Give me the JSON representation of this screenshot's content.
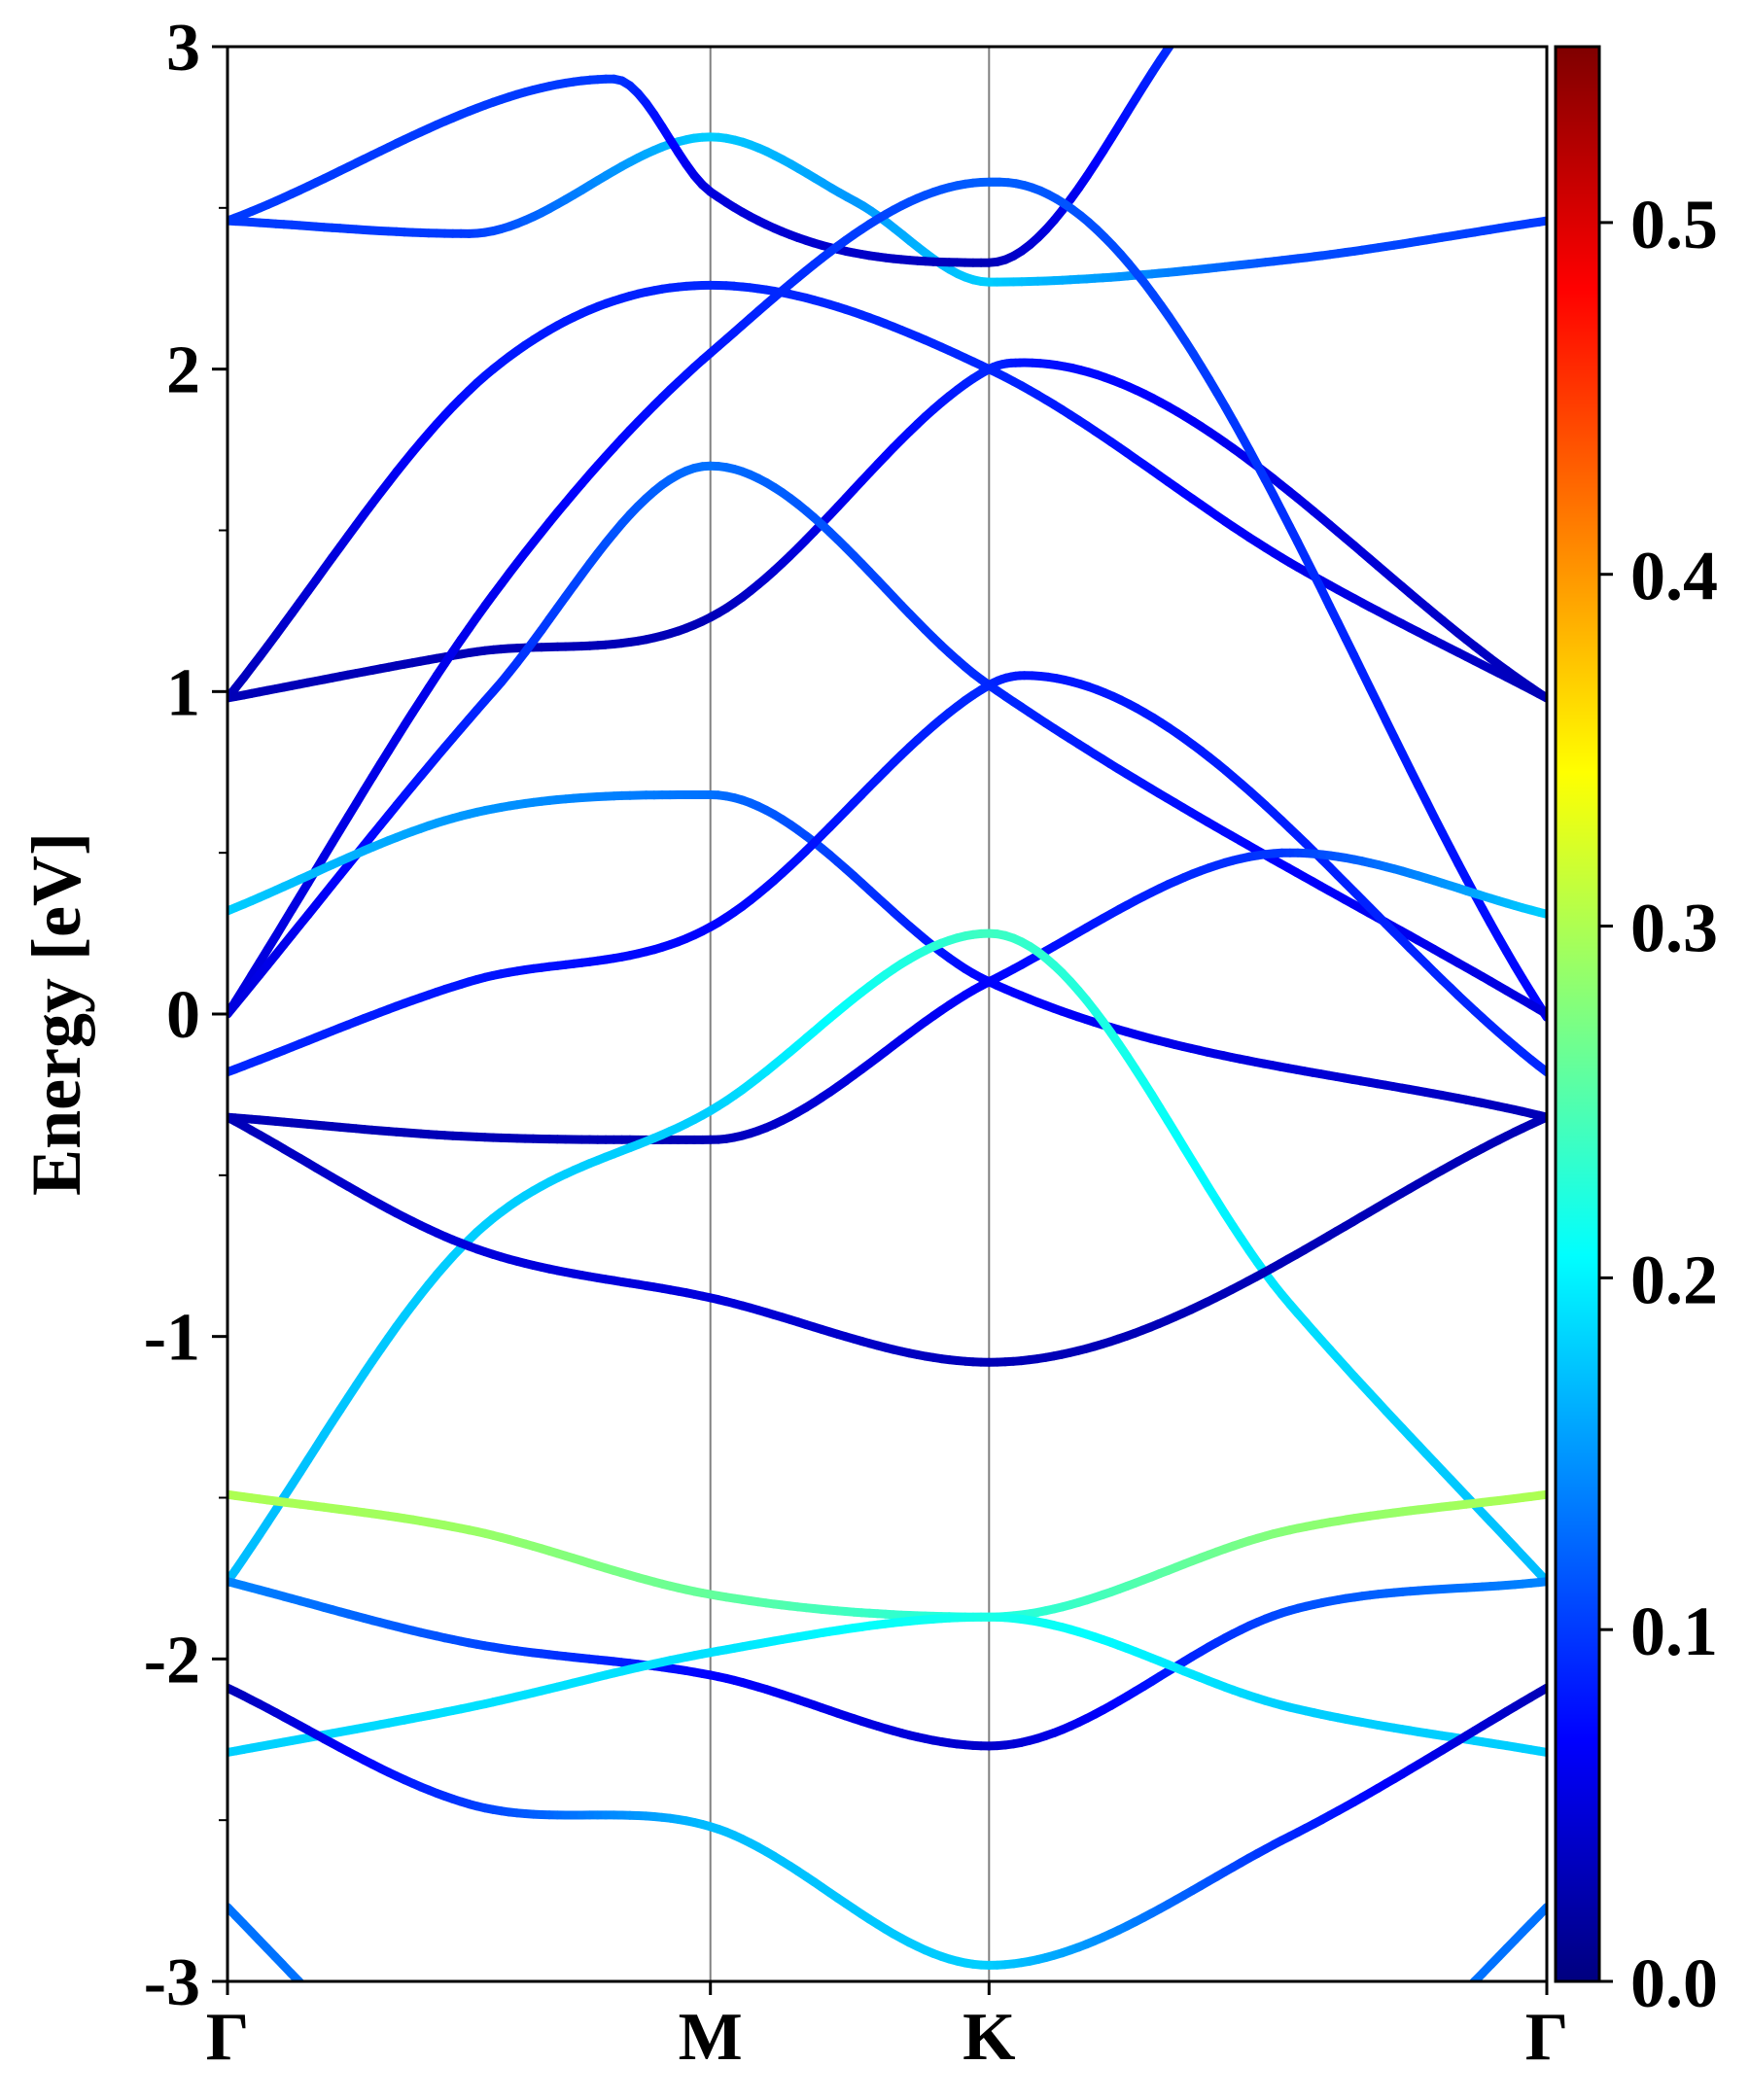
{
  "chart_data": {
    "type": "line",
    "title": "",
    "xlabel": "",
    "ylabel": "Energy [eV]",
    "ylim": [
      -3,
      3
    ],
    "y_ticks": [
      "-3",
      "-2",
      "-1",
      "0",
      "1",
      "2",
      "3"
    ],
    "y_ticks_values": [
      -3,
      -2,
      -1,
      0,
      1,
      2,
      3
    ],
    "y_minor_ticks": [
      -2.5,
      -1.5,
      -0.5,
      0.5,
      1.5,
      2.5
    ],
    "k_points": [
      {
        "label": "Γ",
        "k": 0.0
      },
      {
        "label": "M",
        "k": 1.0
      },
      {
        "label": "K",
        "k": 1.577
      },
      {
        "label": "Γ",
        "k": 2.732
      }
    ],
    "colorbar": {
      "colormap": "jet",
      "range": [
        0.0,
        0.55
      ],
      "tick_labels": [
        "0.0",
        "0.1",
        "0.2",
        "0.3",
        "0.4",
        "0.5"
      ],
      "tick_values": [
        0.0,
        0.1,
        0.2,
        0.3,
        0.4,
        0.5
      ]
    },
    "grid": false,
    "legend": "none",
    "series": [
      {
        "points": [
          [
            0,
            2.46,
            0.1
          ],
          [
            0.5,
            2.42,
            0.1
          ],
          [
            1.0,
            2.72,
            0.18
          ],
          [
            1.3,
            2.52,
            0.15
          ],
          [
            1.577,
            2.27,
            0.18
          ],
          [
            2.2,
            2.34,
            0.11
          ],
          [
            2.732,
            2.46,
            0.1
          ]
        ]
      },
      {
        "points": [
          [
            0,
            2.46,
            0.1
          ],
          [
            0.8,
            2.9,
            0.1
          ],
          [
            1.0,
            2.55,
            0.05
          ],
          [
            1.577,
            2.33,
            0.03
          ],
          [
            2.0,
            3.1,
            0.1
          ]
        ]
      },
      {
        "points": [
          [
            0,
            0.98,
            0.03
          ],
          [
            0.55,
            2.0,
            0.08
          ],
          [
            1.0,
            2.26,
            0.09
          ],
          [
            1.577,
            2.0,
            0.09
          ],
          [
            2.2,
            1.4,
            0.06
          ],
          [
            2.732,
            0.98,
            0.03
          ]
        ]
      },
      {
        "points": [
          [
            0,
            0.98,
            0.03
          ],
          [
            0.5,
            1.12,
            0.03
          ],
          [
            1.0,
            1.23,
            0.03
          ],
          [
            1.577,
            2.0,
            0.09
          ],
          [
            1.65,
            2.02,
            0.08
          ],
          [
            2.732,
            0.98,
            0.03
          ]
        ]
      },
      {
        "points": [
          [
            0,
            0.0,
            0.05
          ],
          [
            0.55,
            1.3,
            0.06
          ],
          [
            1.0,
            2.05,
            0.08
          ],
          [
            1.577,
            2.58,
            0.12
          ],
          [
            1.6,
            2.58,
            0.12
          ],
          [
            2.732,
            -0.01,
            0.07
          ]
        ]
      },
      {
        "points": [
          [
            0,
            0.0,
            0.05
          ],
          [
            0.55,
            1.0,
            0.09
          ],
          [
            1.0,
            1.7,
            0.13
          ],
          [
            1.577,
            1.02,
            0.09
          ],
          [
            2.732,
            0.0,
            0.05
          ]
        ]
      },
      {
        "points": [
          [
            0,
            0.32,
            0.18
          ],
          [
            0.5,
            0.62,
            0.15
          ],
          [
            1.0,
            0.68,
            0.13
          ],
          [
            1.577,
            0.1,
            0.07
          ],
          [
            2.732,
            -0.32,
            0.03
          ]
        ]
      },
      {
        "points": [
          [
            0,
            -0.18,
            0.09
          ],
          [
            0.5,
            0.1,
            0.08
          ],
          [
            1.0,
            0.27,
            0.07
          ],
          [
            1.577,
            1.02,
            0.09
          ],
          [
            1.65,
            1.05,
            0.08
          ],
          [
            2.732,
            -0.18,
            0.09
          ]
        ]
      },
      {
        "points": [
          [
            0,
            -0.32,
            0.03
          ],
          [
            0.5,
            -0.38,
            0.03
          ],
          [
            1.0,
            -0.39,
            0.03
          ],
          [
            1.577,
            0.1,
            0.07
          ],
          [
            2.2,
            0.5,
            0.1
          ],
          [
            2.732,
            0.31,
            0.18
          ]
        ]
      },
      {
        "points": [
          [
            0,
            -1.76,
            0.17
          ],
          [
            0.5,
            -0.7,
            0.18
          ],
          [
            1.0,
            -0.3,
            0.18
          ],
          [
            1.577,
            0.25,
            0.24
          ],
          [
            2.2,
            -0.9,
            0.19
          ],
          [
            2.732,
            -1.76,
            0.17
          ]
        ]
      },
      {
        "points": [
          [
            0,
            -0.32,
            0.03
          ],
          [
            0.5,
            -0.72,
            0.05
          ],
          [
            1.0,
            -0.88,
            0.05
          ],
          [
            1.577,
            -1.08,
            0.03
          ],
          [
            2.732,
            -0.32,
            0.03
          ]
        ]
      },
      {
        "points": [
          [
            0,
            -1.49,
            0.3
          ],
          [
            0.5,
            -1.6,
            0.29
          ],
          [
            1.0,
            -1.8,
            0.26
          ],
          [
            1.577,
            -1.87,
            0.22
          ],
          [
            2.2,
            -1.6,
            0.28
          ],
          [
            2.732,
            -1.49,
            0.3
          ]
        ]
      },
      {
        "points": [
          [
            0,
            -1.76,
            0.14
          ],
          [
            0.5,
            -1.95,
            0.11
          ],
          [
            1.0,
            -2.05,
            0.07
          ],
          [
            1.577,
            -2.27,
            0.04
          ],
          [
            2.2,
            -1.85,
            0.11
          ],
          [
            2.732,
            -1.76,
            0.14
          ]
        ]
      },
      {
        "points": [
          [
            0,
            -2.29,
            0.18
          ],
          [
            0.5,
            -2.15,
            0.19
          ],
          [
            1.0,
            -1.98,
            0.19
          ],
          [
            1.577,
            -1.87,
            0.22
          ],
          [
            2.2,
            -2.15,
            0.18
          ],
          [
            2.732,
            -2.29,
            0.18
          ]
        ]
      },
      {
        "points": [
          [
            0,
            -2.09,
            0.03
          ],
          [
            0.5,
            -2.45,
            0.1
          ],
          [
            1.0,
            -2.52,
            0.17
          ],
          [
            1.577,
            -2.95,
            0.18
          ],
          [
            2.2,
            -2.55,
            0.09
          ],
          [
            2.732,
            -2.09,
            0.03
          ]
        ]
      },
      {
        "points": [
          [
            0,
            -2.77,
            0.13
          ],
          [
            0.18,
            -3.05,
            0.13
          ]
        ]
      },
      {
        "points": [
          [
            2.55,
            -3.05,
            0.13
          ],
          [
            2.732,
            -2.77,
            0.13
          ]
        ]
      }
    ]
  }
}
